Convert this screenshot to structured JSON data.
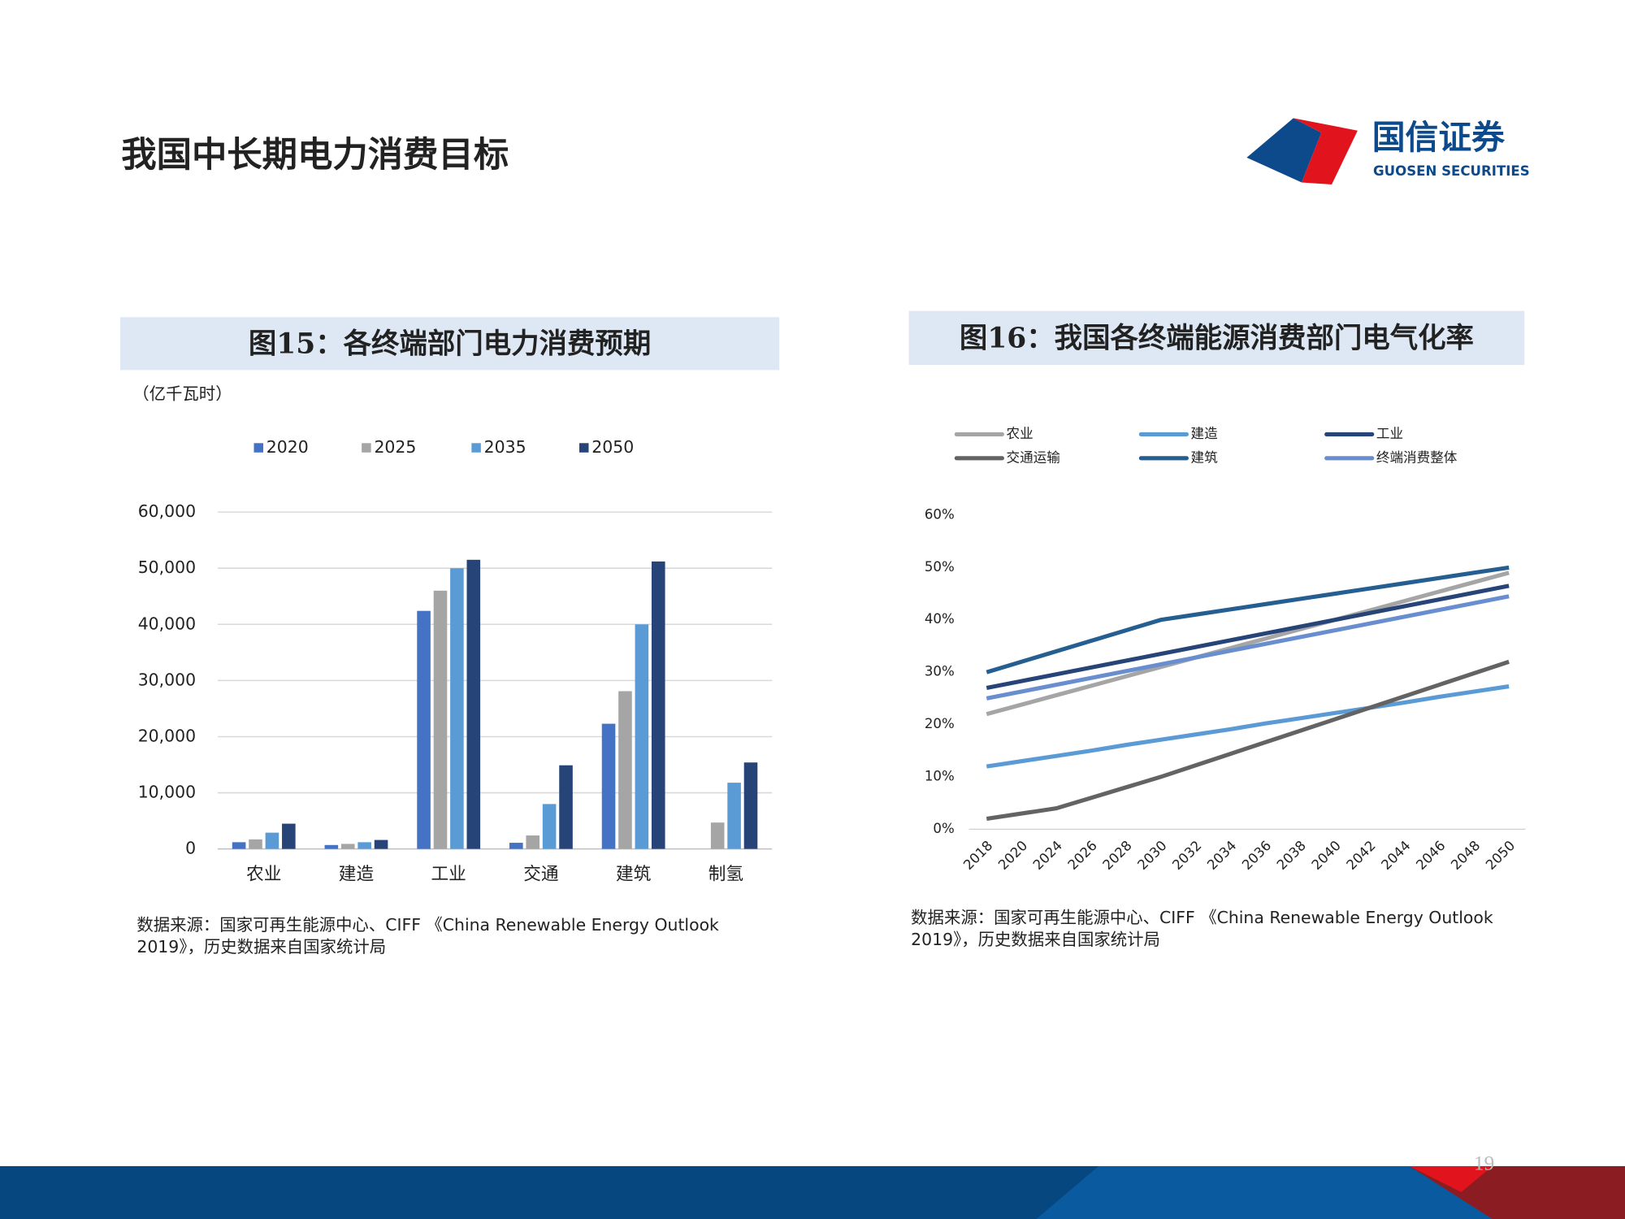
{
  "page": {
    "title": "我国中长期电力消费目标",
    "logo_cn": "国信证券",
    "logo_en": "GUOSEN SECURITIES",
    "page_number": "19"
  },
  "chart_data": [
    {
      "type": "bar",
      "title": "图15：各终端部门电力消费预期",
      "y_label": "（亿千瓦时）",
      "categories": [
        "农业",
        "建造",
        "工业",
        "交通",
        "建筑",
        "制氢"
      ],
      "series": [
        {
          "name": "2020",
          "color": "#4472c4",
          "values": [
            1200,
            700,
            42400,
            1100,
            22300,
            null
          ]
        },
        {
          "name": "2025",
          "color": "#a5a5a5",
          "values": [
            1700,
            900,
            46000,
            2400,
            28100,
            4700
          ]
        },
        {
          "name": "2035",
          "color": "#5b9bd5",
          "values": [
            2900,
            1200,
            50000,
            8000,
            40000,
            11800
          ]
        },
        {
          "name": "2050",
          "color": "#264478",
          "values": [
            4500,
            1600,
            51500,
            14900,
            51200,
            15400
          ]
        }
      ],
      "ylim": [
        0,
        60000
      ],
      "yticks": [
        0,
        {
          "value": 10000,
          "label": "10,000"
        },
        {
          "value": 20000,
          "label": "20,000"
        },
        {
          "value": 30000,
          "label": "30,000"
        },
        {
          "value": 40000,
          "label": "40,000"
        },
        {
          "value": 50000,
          "label": "50,000"
        },
        {
          "value": 60000,
          "label": "60,000"
        }
      ],
      "grid": true,
      "legend": "top",
      "source": [
        "数据来源：国家可再生能源中心、CIFF 《China Renewable Energy Outlook",
        "2019》，历史数据来自国家统计局"
      ]
    },
    {
      "type": "line",
      "title": "图16：我国各终端能源消费部门电气化率",
      "categories": [
        "2018",
        "2020",
        "2024",
        "2026",
        "2028",
        "2030",
        "2032",
        "2034",
        "2036",
        "2038",
        "2040",
        "2042",
        "2044",
        "2046",
        "2048",
        "2050"
      ],
      "series": [
        {
          "name": "农业",
          "color": "#a5a5a5",
          "values": [
            22,
            23.8,
            25.6,
            27.4,
            29.2,
            31,
            32.8,
            34.6,
            36.4,
            38.2,
            40,
            41.8,
            43.6,
            45.4,
            47.2,
            49
          ]
        },
        {
          "name": "建造",
          "color": "#5b9bd5",
          "values": [
            12,
            13,
            14,
            15,
            16.1,
            17.1,
            18.1,
            19.1,
            20.2,
            21.2,
            22.2,
            23.2,
            24.2,
            25.3,
            26.3,
            27.3
          ]
        },
        {
          "name": "工业",
          "color": "#264478",
          "values": [
            27,
            28.3,
            29.6,
            30.9,
            32.2,
            33.5,
            34.8,
            36.1,
            37.4,
            38.7,
            40,
            41.3,
            42.6,
            43.9,
            45.2,
            46.5
          ]
        },
        {
          "name": "交通运输",
          "color": "#636363",
          "values": [
            2,
            3,
            4,
            6,
            8,
            10,
            12.2,
            14.4,
            16.6,
            18.8,
            21,
            23.2,
            25.4,
            27.6,
            29.8,
            32
          ]
        },
        {
          "name": "建筑",
          "color": "#255e91",
          "values": [
            30,
            32,
            34,
            36,
            38,
            40,
            41,
            42,
            43,
            44,
            45,
            46,
            47,
            48,
            49,
            50
          ]
        },
        {
          "name": "终端消费整体",
          "color": "#698ed0",
          "values": [
            25,
            26.3,
            27.6,
            28.9,
            30.2,
            31.5,
            32.8,
            34.1,
            35.4,
            36.7,
            38,
            39.3,
            40.6,
            41.9,
            43.2,
            44.5
          ]
        }
      ],
      "ylim": [
        0,
        60
      ],
      "yticks": [
        {
          "value": 0,
          "label": "0%"
        },
        {
          "value": 10,
          "label": "10%"
        },
        {
          "value": 20,
          "label": "20%"
        },
        {
          "value": 30,
          "label": "30%"
        },
        {
          "value": 40,
          "label": "40%"
        },
        {
          "value": 50,
          "label": "50%"
        },
        {
          "value": 60,
          "label": "60%"
        }
      ],
      "grid": false,
      "legend": "top",
      "source": [
        "数据来源：国家可再生能源中心、CIFF 《China Renewable Energy Outlook",
        "2019》，历史数据来自国家统计局"
      ]
    }
  ]
}
